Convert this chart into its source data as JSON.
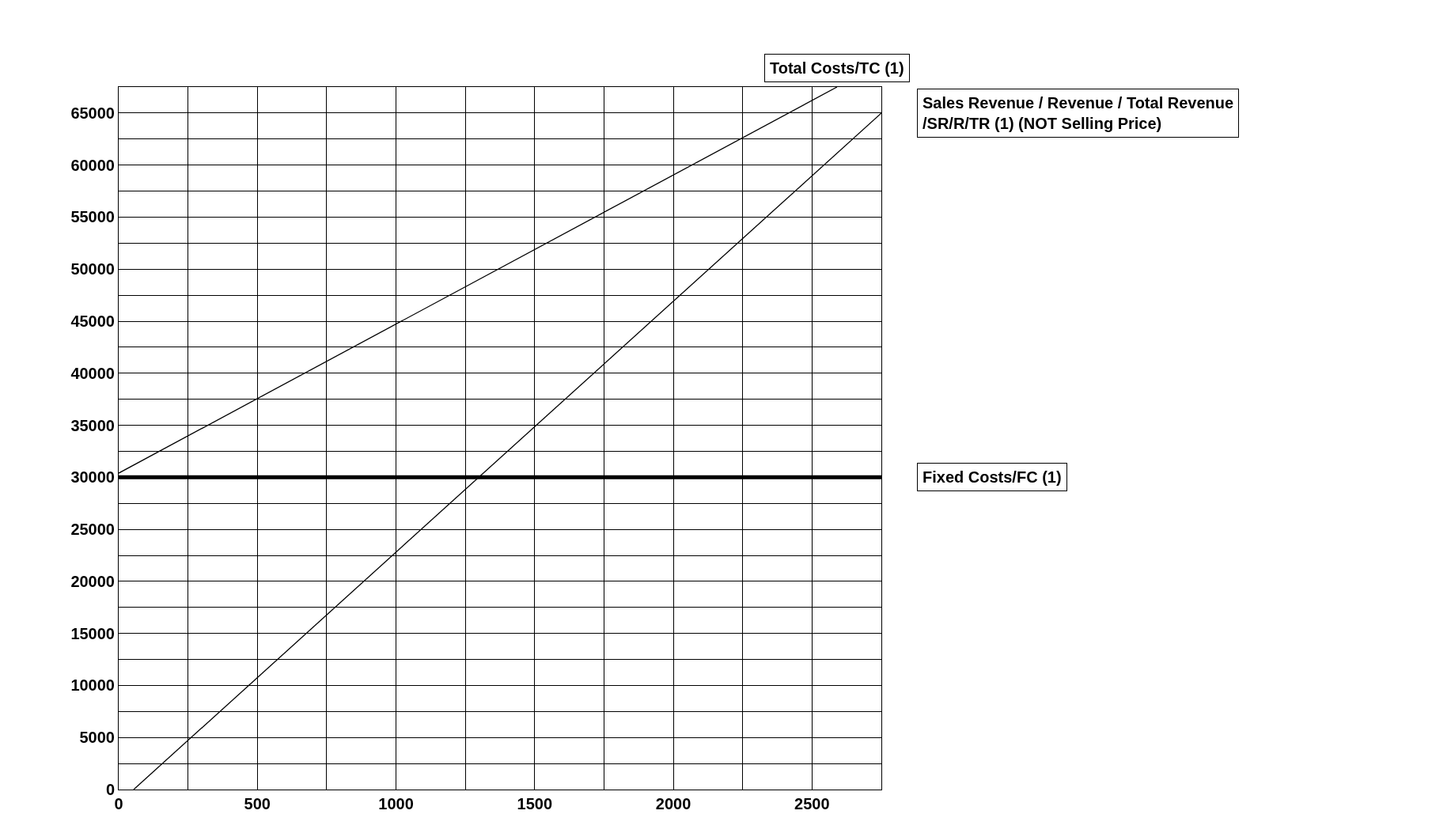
{
  "chart_data": {
    "type": "line",
    "series": [
      {
        "name": "Total Costs/TC (1)",
        "color": "#000000",
        "x": [
          0,
          2590
        ],
        "values": [
          30400,
          67500
        ]
      },
      {
        "name": "Sales Revenue / Revenue / Total Revenue /SR/R/TR (1) (NOT Selling Price)",
        "color": "#000000",
        "x": [
          54,
          2750
        ],
        "values": [
          0,
          65000
        ]
      }
    ],
    "ref_lines": [
      {
        "axis": "y",
        "value": 30000,
        "label": "Fixed Costs/FC (1)",
        "color": "#000000"
      }
    ],
    "xlim": [
      0,
      2750
    ],
    "xticks": [
      0,
      500,
      1000,
      1500,
      2000,
      2500
    ],
    "ylim": [
      0,
      67500
    ],
    "yticks": [
      0,
      5000,
      10000,
      15000,
      20000,
      25000,
      30000,
      35000,
      40000,
      45000,
      50000,
      55000,
      60000,
      65000
    ],
    "grid": true,
    "legend": false,
    "marker": "none",
    "line_style": "solid"
  }
}
